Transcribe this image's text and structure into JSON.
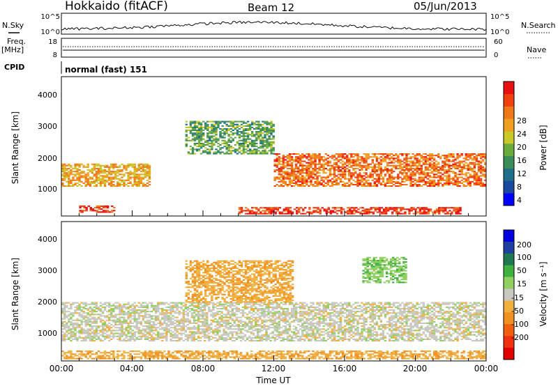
{
  "header": {
    "station": "Hokkaido (fitACF)",
    "beam": "Beam 12",
    "date": "05/Jun/2013"
  },
  "ancillary": {
    "nsky_label": "N.Sky",
    "nsky_ticks": [
      "10^5",
      "10^0"
    ],
    "nsearch_label": "N.Search",
    "nsearch_ticks": [
      "10^5",
      "10^0"
    ],
    "freq_label": "Freq.",
    "freq_unit": "[MHz]",
    "freq_ticks": [
      "18",
      "8"
    ],
    "nave_label": "Nave",
    "nave_ticks": [
      "60",
      "0"
    ],
    "cpid_label": "CPID",
    "cpid_text": "normal (fast) 151"
  },
  "panels": {
    "power": {
      "ylabel": "Slant Range [km]",
      "yticks": [
        "4000",
        "3000",
        "2000",
        "1000"
      ],
      "colorbar_label": "Power [dB]",
      "colorbar_ticks": [
        "28",
        "24",
        "20",
        "16",
        "12",
        "8",
        "4"
      ],
      "colors": [
        "#0000ff",
        "#1a4aa0",
        "#1f6f8b",
        "#3c8c5a",
        "#6aaa3e",
        "#c8c828",
        "#f0a020",
        "#f07818",
        "#f04010",
        "#e81010"
      ]
    },
    "velocity": {
      "ylabel": "Slant Range [km]",
      "yticks": [
        "4000",
        "3000",
        "2000",
        "1000"
      ],
      "colorbar_label": "Velocity [m s⁻¹]",
      "colorbar_ticks": [
        "200",
        "100",
        "50",
        "15",
        "-15",
        "-50",
        "-100",
        "-200"
      ],
      "colors": [
        "#0000e0",
        "#2040a0",
        "#207850",
        "#40b040",
        "#90d060",
        "#c8c8c0",
        "#f0b040",
        "#f09020",
        "#f06010",
        "#f03010",
        "#e00000"
      ]
    }
  },
  "xaxis": {
    "ticks": [
      "00:00",
      "04:00",
      "08:00",
      "12:00",
      "16:00",
      "20:00",
      "00:00"
    ],
    "label": "Time UT"
  },
  "chart_data": [
    {
      "type": "heatmap",
      "title": "Power",
      "x": [
        "00:00",
        "04:00",
        "08:00",
        "12:00",
        "16:00",
        "20:00",
        "00:00"
      ],
      "y_range_km": [
        200,
        4500
      ],
      "colorbar": "Power [dB]",
      "color_scale": [
        0,
        30
      ],
      "features": [
        {
          "time": "00:00-05:00",
          "range_km": [
            1100,
            1800
          ],
          "power_db": 20
        },
        {
          "time": "01:00-03:00",
          "range_km": [
            300,
            500
          ],
          "power_db": 28
        },
        {
          "time": "10:00-22:30",
          "range_km": [
            250,
            450
          ],
          "power_db": 28
        },
        {
          "time": "12:00-24:00",
          "range_km": [
            1100,
            2100
          ],
          "power_db": 24
        },
        {
          "time": "07:00-12:00",
          "range_km": [
            2100,
            3100
          ],
          "power_db": 12
        }
      ]
    },
    {
      "type": "heatmap",
      "title": "Velocity",
      "x": [
        "00:00",
        "04:00",
        "08:00",
        "12:00",
        "16:00",
        "20:00",
        "00:00"
      ],
      "y_range_km": [
        200,
        4500
      ],
      "colorbar": "Velocity [m s⁻¹]",
      "color_scale": [
        -200,
        200
      ],
      "features": [
        {
          "time": "00:00-24:00",
          "range_km": [
            800,
            2000
          ],
          "velocity_ms": 0
        },
        {
          "time": "07:00-13:00",
          "range_km": [
            2000,
            3300
          ],
          "velocity_ms": -50
        },
        {
          "time": "00:00-24:00",
          "range_km": [
            250,
            500
          ],
          "velocity_ms": -50
        },
        {
          "time": "17:00-19:30",
          "range_km": [
            2600,
            3400
          ],
          "velocity_ms": 50
        }
      ]
    }
  ]
}
